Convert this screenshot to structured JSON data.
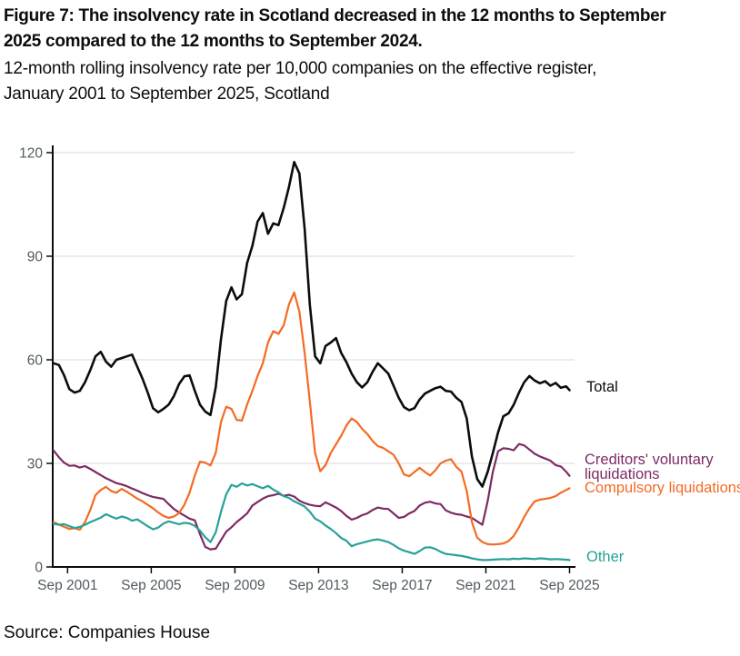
{
  "header": {
    "title_line1": "Figure 7: The insolvency rate in Scotland decreased in the 12 months to September",
    "title_line2": "2025 compared to the 12 months to September 2024.",
    "subtitle_line1": "12-month rolling insolvency rate per 10,000 companies on the effective register,",
    "subtitle_line2": "January 2001 to September 2025, Scotland"
  },
  "source": "Source: Companies House",
  "colors": {
    "text": "#0b0c0c",
    "axis": "#0b0c0c",
    "axis_labels": "#505a5f",
    "gridline": "#d9d9d9",
    "background": "#ffffff"
  },
  "chart_data": {
    "type": "line",
    "title": "Figure 7: The insolvency rate in Scotland decreased in the 12 months to September 2025 compared to the 12 months to September 2024.",
    "subtitle": "12-month rolling insolvency rate per 10,000 companies on the effective register, January 2001 to September 2025, Scotland",
    "ylabel": "12-month rolling insolvency rate per 10,000 companies",
    "xlabel": "",
    "grid": "horizontal",
    "legend_position": "right-of-line-ends",
    "x_start": "Jan 2001",
    "x_end": "Sep 2025",
    "x_step_months": 3,
    "x_total_months": 296,
    "x_axis": {
      "tick_labels": [
        "Sep 2001",
        "Sep 2005",
        "Sep 2009",
        "Sep 2013",
        "Sep 2017",
        "Sep 2021",
        "Sep 2025"
      ],
      "tick_months": [
        8,
        56,
        104,
        152,
        200,
        248,
        296
      ]
    },
    "y_axis": {
      "tick_labels": [
        "0",
        "30",
        "60",
        "90",
        "120"
      ],
      "ticks": [
        0,
        30,
        60,
        90,
        120
      ],
      "range": [
        0,
        120
      ]
    },
    "series": [
      {
        "name": "Total",
        "color": "#0b0c0c",
        "values": [
          59,
          58.5,
          55.5,
          51.5,
          50.5,
          51,
          53.5,
          57,
          61,
          62.3,
          59.5,
          58,
          60,
          60.5,
          61,
          61.5,
          58,
          54.5,
          50.5,
          46,
          44.8,
          45.8,
          47,
          49.5,
          53,
          55.2,
          55.5,
          51,
          47,
          45,
          44,
          52,
          66,
          77,
          81,
          77.5,
          79,
          88,
          93,
          100,
          102.5,
          96.5,
          99.5,
          99,
          104,
          110,
          117.3,
          114,
          98,
          76,
          61,
          59,
          64,
          65,
          66.3,
          62,
          59.3,
          56,
          53.5,
          52,
          53.5,
          56.5,
          59,
          57.5,
          56,
          52.5,
          49,
          46.3,
          45.4,
          46,
          48.5,
          50.2,
          51,
          51.8,
          52.2,
          51,
          50.8,
          49,
          47.8,
          43,
          32,
          25.5,
          23.3,
          27.5,
          33,
          39,
          43.6,
          44.5,
          47,
          50.5,
          53.5,
          55.3,
          54,
          53.2,
          53.8,
          52.5,
          53.3,
          51.9,
          52.3,
          51.2
        ]
      },
      {
        "name": "Creditors' voluntary liquidations",
        "color": "#7d2a64",
        "values": [
          33.7,
          31.8,
          30.2,
          29.3,
          29.4,
          28.8,
          29.2,
          28.4,
          27.5,
          26.6,
          25.7,
          25,
          24.3,
          23.9,
          23.4,
          22.7,
          22.1,
          21.4,
          20.8,
          20.3,
          20,
          19.7,
          18.2,
          16.8,
          15.8,
          14.9,
          14,
          13.5,
          9.5,
          5.8,
          5.1,
          5.3,
          7.8,
          10.2,
          11.5,
          13,
          14.2,
          15.5,
          17.8,
          18.8,
          19.8,
          20.5,
          20.8,
          21.2,
          20.6,
          20.9,
          20.4,
          19.2,
          18.5,
          18,
          17.7,
          17.6,
          18.7,
          18,
          17.2,
          16.2,
          14.8,
          13.7,
          14.2,
          15,
          15.5,
          16.5,
          17.2,
          16.9,
          16.8,
          15.5,
          14.2,
          14.5,
          15.5,
          16.2,
          17.8,
          18.6,
          18.9,
          18.4,
          18.2,
          16.4,
          15.7,
          15.3,
          15.1,
          14.6,
          14.2,
          13.2,
          12.2,
          19,
          27.5,
          33.5,
          34.4,
          34.2,
          33.8,
          35.6,
          35.2,
          34,
          32.8,
          32,
          31.4,
          30.8,
          29.5,
          29.1,
          27.6,
          26.4
        ]
      },
      {
        "name": "Compulsory liquidations",
        "color": "#f46a25",
        "values": [
          13,
          12.3,
          11.6,
          11,
          11.2,
          10.8,
          13,
          16.5,
          20.8,
          22.3,
          23.2,
          22,
          21.5,
          22.6,
          21.8,
          20.8,
          19.8,
          19,
          18,
          17,
          15.8,
          14.8,
          14.2,
          14.6,
          15.6,
          18,
          21.5,
          26.5,
          30.5,
          30.2,
          29.4,
          33,
          42,
          46.4,
          45.8,
          42.6,
          42.4,
          47,
          51,
          55.3,
          59,
          65,
          68.3,
          67.5,
          70,
          76,
          79.5,
          74,
          62,
          48,
          33,
          27.7,
          29.5,
          33,
          35.5,
          38,
          41,
          43,
          42,
          40,
          38.5,
          36.5,
          35,
          34.5,
          33.5,
          32.5,
          30,
          26.8,
          26.3,
          27.5,
          28.7,
          27.5,
          26.5,
          28,
          30,
          30.8,
          31.2,
          29,
          27.6,
          22,
          13,
          8.5,
          7.2,
          6.6,
          6.5,
          6.6,
          6.8,
          7.5,
          9,
          11.5,
          14.5,
          17,
          19,
          19.5,
          19.7,
          20,
          20.5,
          21.5,
          22.3,
          22.8
        ]
      },
      {
        "name": "Other",
        "color": "#28a197",
        "values": [
          12.5,
          12.2,
          12.4,
          11.8,
          11.3,
          11.6,
          12.2,
          13,
          13.6,
          14.3,
          15.3,
          14.6,
          14,
          14.6,
          14.2,
          13.4,
          13.8,
          12.8,
          11.8,
          10.9,
          11.4,
          12.6,
          13.2,
          12.8,
          12.4,
          12.8,
          12.6,
          11.9,
          10.5,
          8.6,
          7.2,
          10,
          16,
          21,
          23.8,
          23.2,
          24.2,
          23.6,
          24,
          23.4,
          22.8,
          23.5,
          22.4,
          21.6,
          20.5,
          20,
          19,
          18.3,
          17.5,
          16,
          14,
          13.2,
          12,
          11,
          9.8,
          8.4,
          7.6,
          6,
          6.6,
          7,
          7.4,
          7.8,
          8,
          7.6,
          7.2,
          6.4,
          5.4,
          4.7,
          4.3,
          3.8,
          4.6,
          5.6,
          5.7,
          5.2,
          4.4,
          3.8,
          3.6,
          3.4,
          3.2,
          2.9,
          2.5,
          2.2,
          2,
          2,
          2.1,
          2.2,
          2.3,
          2.2,
          2.4,
          2.3,
          2.5,
          2.4,
          2.3,
          2.5,
          2.4,
          2.2,
          2.3,
          2.2,
          2.1,
          2
        ]
      }
    ]
  }
}
